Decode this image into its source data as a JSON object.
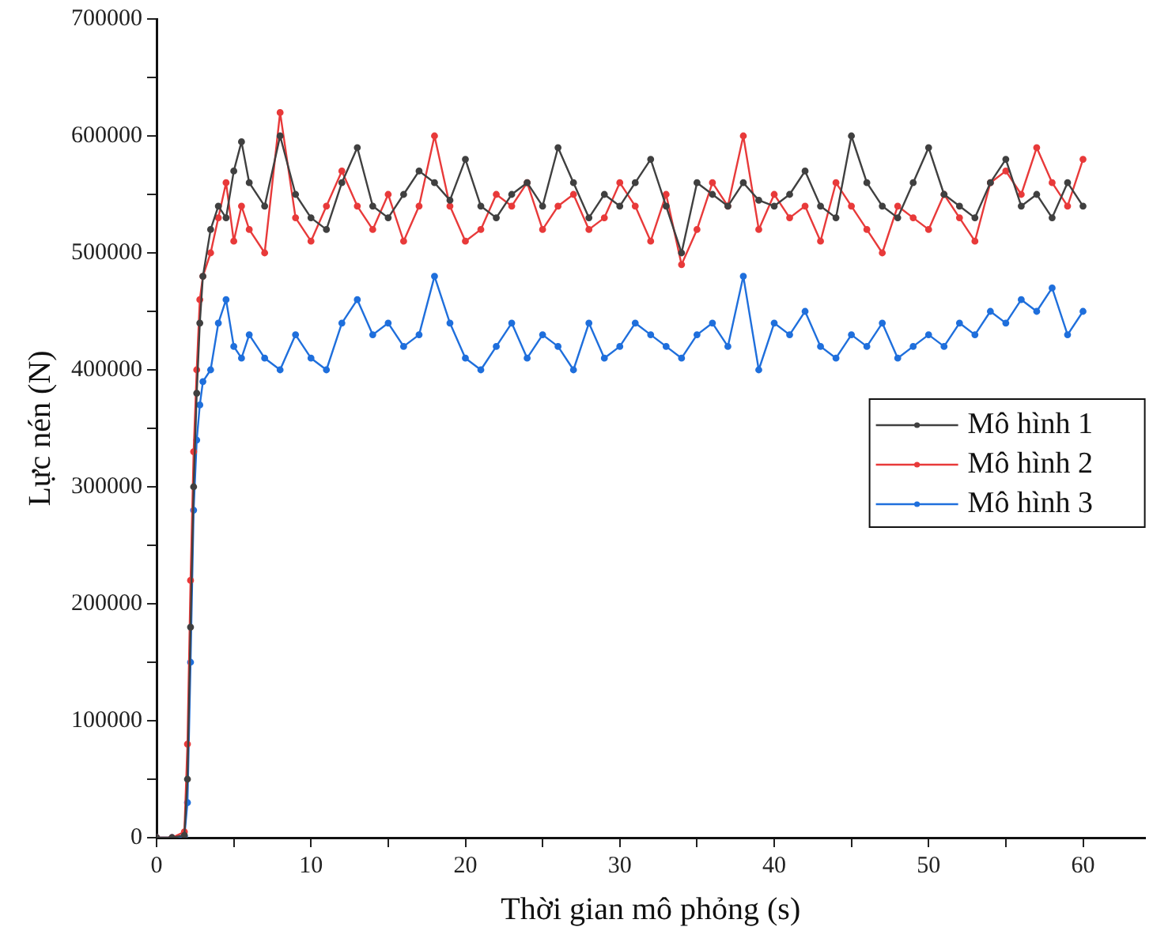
{
  "chart_data": {
    "type": "line",
    "xlabel": "Thời gian mô phỏng (s)",
    "ylabel": "Lực nén (N)",
    "xlim": [
      0,
      64
    ],
    "ylim": [
      0,
      700000
    ],
    "xticks": [
      0,
      {
        "value": 5,
        "label": null
      },
      10,
      {
        "value": 15,
        "label": null
      },
      20,
      {
        "value": 25,
        "label": null
      },
      30,
      {
        "value": 35,
        "label": null
      },
      40,
      {
        "value": 45,
        "label": null
      },
      50,
      {
        "value": 55,
        "label": null
      },
      60
    ],
    "yticks": [
      0,
      {
        "value": 50000,
        "label": null
      },
      100000,
      {
        "value": 150000,
        "label": null
      },
      200000,
      {
        "value": 250000,
        "label": null
      },
      300000,
      {
        "value": 350000,
        "label": null
      },
      400000,
      {
        "value": 450000,
        "label": null
      },
      500000,
      {
        "value": 550000,
        "label": null
      },
      600000,
      {
        "value": 650000,
        "label": null
      },
      700000
    ],
    "x": [
      0,
      1,
      1.8,
      2,
      2.2,
      2.4,
      2.6,
      2.8,
      3,
      3.5,
      4,
      4.5,
      5,
      5.5,
      6,
      7,
      8,
      9,
      10,
      11,
      12,
      13,
      14,
      15,
      16,
      17,
      18,
      19,
      20,
      21,
      22,
      23,
      24,
      25,
      26,
      27,
      28,
      29,
      30,
      31,
      32,
      33,
      34,
      35,
      36,
      37,
      38,
      39,
      40,
      41,
      42,
      43,
      44,
      45,
      46,
      47,
      48,
      49,
      50,
      51,
      52,
      53,
      54,
      55,
      56,
      57,
      58,
      59,
      60
    ],
    "grid": false,
    "legend": "right",
    "marker": "circle",
    "line_style": "solid",
    "series": [
      {
        "name": "Mô hình 1",
        "color": "#404040",
        "values": [
          0,
          0,
          2000,
          50000,
          180000,
          300000,
          380000,
          440000,
          480000,
          520000,
          540000,
          530000,
          570000,
          595000,
          560000,
          540000,
          600000,
          550000,
          530000,
          520000,
          560000,
          590000,
          540000,
          530000,
          550000,
          570000,
          560000,
          545000,
          580000,
          540000,
          530000,
          550000,
          560000,
          540000,
          590000,
          560000,
          530000,
          550000,
          540000,
          560000,
          580000,
          540000,
          500000,
          560000,
          550000,
          540000,
          560000,
          545000,
          540000,
          550000,
          570000,
          540000,
          530000,
          600000,
          560000,
          540000,
          530000,
          560000,
          590000,
          550000,
          540000,
          530000,
          560000,
          580000,
          540000,
          550000,
          530000,
          560000,
          540000
        ]
      },
      {
        "name": "Mô hình 2",
        "color": "#e83a3a",
        "values": [
          0,
          0,
          5000,
          80000,
          220000,
          330000,
          400000,
          460000,
          480000,
          500000,
          530000,
          560000,
          510000,
          540000,
          520000,
          500000,
          620000,
          530000,
          510000,
          540000,
          570000,
          540000,
          520000,
          550000,
          510000,
          540000,
          600000,
          540000,
          510000,
          520000,
          550000,
          540000,
          560000,
          520000,
          540000,
          550000,
          520000,
          530000,
          560000,
          540000,
          510000,
          550000,
          490000,
          520000,
          560000,
          540000,
          600000,
          520000,
          550000,
          530000,
          540000,
          510000,
          560000,
          540000,
          520000,
          500000,
          540000,
          530000,
          520000,
          550000,
          530000,
          510000,
          560000,
          570000,
          550000,
          590000,
          560000,
          540000,
          580000
        ]
      },
      {
        "name": "Mô hình 3",
        "color": "#1f6fdc",
        "values": [
          0,
          0,
          1000,
          30000,
          150000,
          280000,
          340000,
          370000,
          390000,
          400000,
          440000,
          460000,
          420000,
          410000,
          430000,
          410000,
          400000,
          430000,
          410000,
          400000,
          440000,
          460000,
          430000,
          440000,
          420000,
          430000,
          480000,
          440000,
          410000,
          400000,
          420000,
          440000,
          410000,
          430000,
          420000,
          400000,
          440000,
          410000,
          420000,
          440000,
          430000,
          420000,
          410000,
          430000,
          440000,
          420000,
          480000,
          400000,
          440000,
          430000,
          450000,
          420000,
          410000,
          430000,
          420000,
          440000,
          410000,
          420000,
          430000,
          420000,
          440000,
          430000,
          450000,
          440000,
          460000,
          450000,
          470000,
          430000,
          450000
        ]
      }
    ]
  }
}
